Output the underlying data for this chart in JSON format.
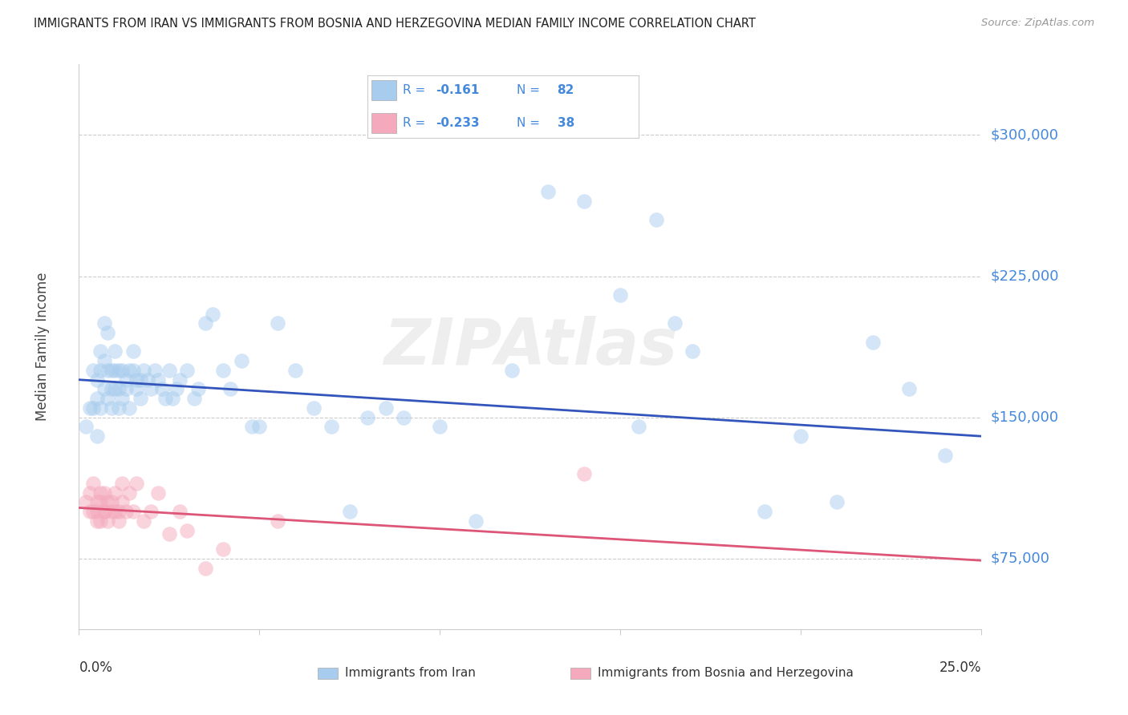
{
  "title": "IMMIGRANTS FROM IRAN VS IMMIGRANTS FROM BOSNIA AND HERZEGOVINA MEDIAN FAMILY INCOME CORRELATION CHART",
  "source": "Source: ZipAtlas.com",
  "ylabel": "Median Family Income",
  "ytick_values": [
    75000,
    150000,
    225000,
    300000
  ],
  "ytick_labels": [
    "$75,000",
    "$150,000",
    "$225,000",
    "$300,000"
  ],
  "ymin": 37500,
  "ymax": 337500,
  "xmin": 0.0,
  "xmax": 0.25,
  "iran_color": "#A8CCEE",
  "bosnia_color": "#F4AABC",
  "iran_line_color": "#3355BB",
  "bosnia_line_color": "#DD5577",
  "ytick_color": "#4488DD",
  "watermark": "ZIPAtlas",
  "iran_line_x": [
    0.0,
    0.25
  ],
  "iran_line_y": [
    170000,
    140000
  ],
  "bosnia_line_x": [
    0.0,
    0.25
  ],
  "bosnia_line_y": [
    102000,
    74000
  ],
  "iran_R": "-0.161",
  "iran_N": "82",
  "bosnia_R": "-0.233",
  "bosnia_N": "38",
  "legend_text_color": "#4488DD",
  "marker_size": 180,
  "marker_alpha": 0.5,
  "iran_x": [
    0.002,
    0.003,
    0.004,
    0.004,
    0.005,
    0.005,
    0.005,
    0.006,
    0.006,
    0.006,
    0.007,
    0.007,
    0.007,
    0.008,
    0.008,
    0.008,
    0.009,
    0.009,
    0.009,
    0.01,
    0.01,
    0.01,
    0.011,
    0.011,
    0.011,
    0.012,
    0.012,
    0.013,
    0.013,
    0.014,
    0.014,
    0.015,
    0.015,
    0.016,
    0.016,
    0.017,
    0.017,
    0.018,
    0.019,
    0.02,
    0.021,
    0.022,
    0.023,
    0.024,
    0.025,
    0.026,
    0.027,
    0.028,
    0.03,
    0.032,
    0.033,
    0.035,
    0.037,
    0.04,
    0.042,
    0.045,
    0.048,
    0.05,
    0.055,
    0.06,
    0.065,
    0.07,
    0.075,
    0.08,
    0.085,
    0.09,
    0.1,
    0.11,
    0.12,
    0.13,
    0.14,
    0.15,
    0.155,
    0.16,
    0.165,
    0.17,
    0.19,
    0.2,
    0.21,
    0.22,
    0.23,
    0.24
  ],
  "iran_y": [
    145000,
    155000,
    155000,
    175000,
    170000,
    160000,
    140000,
    175000,
    155000,
    185000,
    200000,
    165000,
    180000,
    175000,
    195000,
    160000,
    175000,
    165000,
    155000,
    175000,
    185000,
    165000,
    175000,
    165000,
    155000,
    175000,
    160000,
    170000,
    165000,
    175000,
    155000,
    185000,
    175000,
    165000,
    170000,
    170000,
    160000,
    175000,
    170000,
    165000,
    175000,
    170000,
    165000,
    160000,
    175000,
    160000,
    165000,
    170000,
    175000,
    160000,
    165000,
    200000,
    205000,
    175000,
    165000,
    180000,
    145000,
    145000,
    200000,
    175000,
    155000,
    145000,
    100000,
    150000,
    155000,
    150000,
    145000,
    95000,
    175000,
    270000,
    265000,
    215000,
    145000,
    255000,
    200000,
    185000,
    100000,
    140000,
    105000,
    190000,
    165000,
    130000
  ],
  "bosnia_x": [
    0.002,
    0.003,
    0.003,
    0.004,
    0.004,
    0.005,
    0.005,
    0.005,
    0.006,
    0.006,
    0.006,
    0.007,
    0.007,
    0.007,
    0.008,
    0.008,
    0.009,
    0.009,
    0.01,
    0.01,
    0.011,
    0.011,
    0.012,
    0.012,
    0.013,
    0.014,
    0.015,
    0.016,
    0.018,
    0.02,
    0.022,
    0.025,
    0.028,
    0.03,
    0.035,
    0.04,
    0.055,
    0.14
  ],
  "bosnia_y": [
    105000,
    100000,
    110000,
    100000,
    115000,
    105000,
    95000,
    100000,
    105000,
    95000,
    110000,
    100000,
    110000,
    100000,
    105000,
    95000,
    105000,
    100000,
    100000,
    110000,
    100000,
    95000,
    105000,
    115000,
    100000,
    110000,
    100000,
    115000,
    95000,
    100000,
    110000,
    88000,
    100000,
    90000,
    70000,
    80000,
    95000,
    120000
  ]
}
